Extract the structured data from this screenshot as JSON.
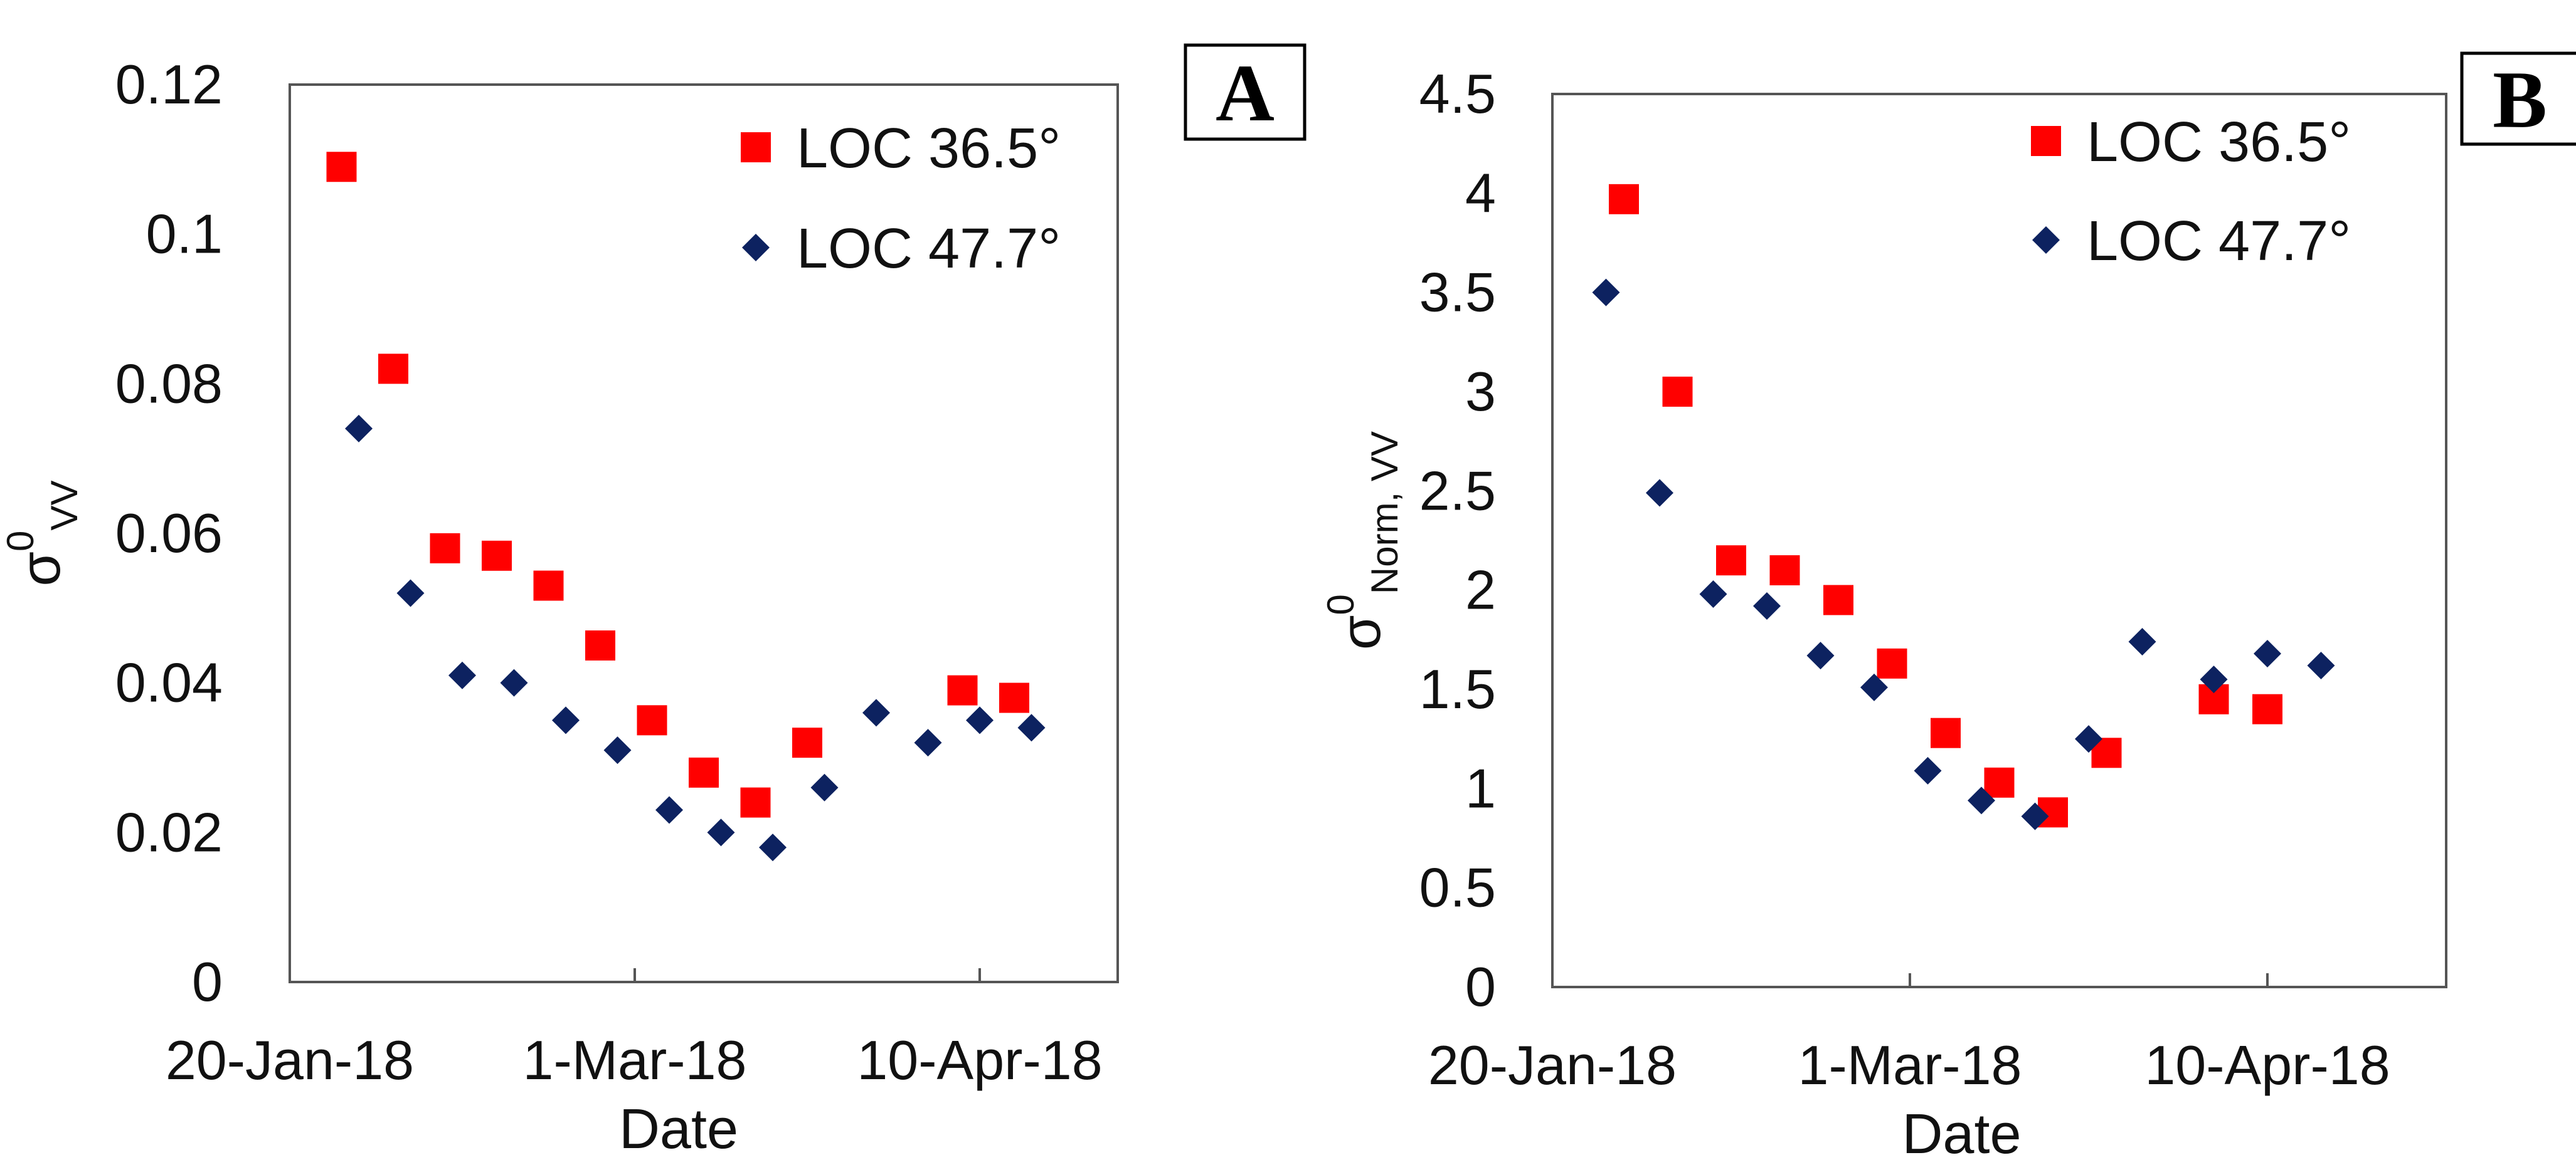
{
  "chart_data": [
    {
      "type": "scatter",
      "panel_label": "A",
      "xlabel": "Date",
      "ylabel": {
        "symbol": "σ",
        "superscript": "0",
        "subscript": "VV"
      },
      "ylim": [
        0,
        0.12
      ],
      "yticks": [
        "0",
        "0.02",
        "0.04",
        "0.06",
        "0.08",
        "0.1",
        "0.12"
      ],
      "xticks": [
        "20-Jan-18",
        "1-Mar-18",
        "10-Apr-18"
      ],
      "legend": "top-right",
      "series": [
        {
          "name": "LOC 36.5°",
          "marker": "square",
          "color": "#ff0000",
          "x": [
            "2018-01-26",
            "2018-02-01",
            "2018-02-07",
            "2018-02-13",
            "2018-02-19",
            "2018-02-25",
            "2018-03-03",
            "2018-03-09",
            "2018-03-15",
            "2018-03-21",
            "2018-04-08",
            "2018-04-14"
          ],
          "y": [
            0.109,
            0.082,
            0.058,
            0.057,
            0.053,
            0.045,
            0.035,
            0.028,
            0.024,
            0.032,
            0.039,
            0.038
          ]
        },
        {
          "name": "LOC 47.7°",
          "marker": "diamond",
          "color": "#0d2260",
          "x": [
            "2018-01-28",
            "2018-02-03",
            "2018-02-09",
            "2018-02-15",
            "2018-02-21",
            "2018-02-27",
            "2018-03-05",
            "2018-03-11",
            "2018-03-17",
            "2018-03-23",
            "2018-03-29",
            "2018-04-04",
            "2018-04-10",
            "2018-04-16"
          ],
          "y": [
            0.074,
            0.052,
            0.041,
            0.04,
            0.035,
            0.031,
            0.023,
            0.02,
            0.018,
            0.026,
            0.036,
            0.032,
            0.035,
            0.034
          ]
        }
      ]
    },
    {
      "type": "scatter",
      "panel_label": "B",
      "xlabel": "Date",
      "ylabel": {
        "symbol": "σ",
        "superscript": "0",
        "subscript": "Norm, VV"
      },
      "ylim": [
        0,
        4.5
      ],
      "yticks": [
        "0",
        "0.5",
        "1",
        "1.5",
        "2",
        "2.5",
        "3",
        "3.5",
        "4",
        "4.5"
      ],
      "xticks": [
        "20-Jan-18",
        "1-Mar-18",
        "10-Apr-18"
      ],
      "legend": "top-right",
      "series": [
        {
          "name": "LOC 36.5°",
          "marker": "square",
          "color": "#ff0000",
          "x": [
            "2018-01-28",
            "2018-02-03",
            "2018-02-09",
            "2018-02-15",
            "2018-02-21",
            "2018-02-27",
            "2018-03-05",
            "2018-03-11",
            "2018-03-17",
            "2018-03-23",
            "2018-04-04",
            "2018-04-10"
          ],
          "y": [
            3.97,
            3.0,
            2.15,
            2.1,
            1.95,
            1.63,
            1.28,
            1.03,
            0.88,
            1.18,
            1.45,
            1.4
          ]
        },
        {
          "name": "LOC 47.7°",
          "marker": "diamond",
          "color": "#0d2260",
          "x": [
            "2018-01-26",
            "2018-02-01",
            "2018-02-07",
            "2018-02-13",
            "2018-02-19",
            "2018-02-25",
            "2018-03-03",
            "2018-03-09",
            "2018-03-15",
            "2018-03-21",
            "2018-03-27",
            "2018-04-04",
            "2018-04-10",
            "2018-04-16"
          ],
          "y": [
            3.5,
            2.49,
            1.98,
            1.92,
            1.67,
            1.51,
            1.09,
            0.94,
            0.86,
            1.25,
            1.74,
            1.55,
            1.68,
            1.62
          ]
        }
      ]
    }
  ]
}
